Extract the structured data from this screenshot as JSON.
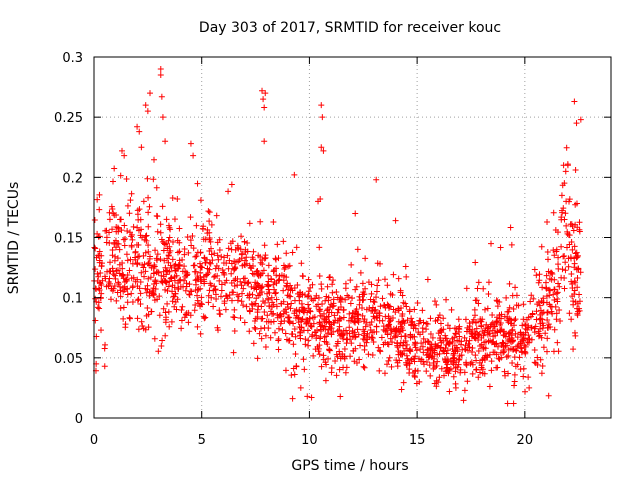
{
  "chart_data": {
    "type": "scatter",
    "title": "Day 303 of 2017, SRMTID for receiver kouc",
    "xlabel": "GPS time / hours",
    "ylabel": "SRMTID / TECUs",
    "xlim": [
      0,
      24
    ],
    "ylim": [
      0,
      0.3
    ],
    "xticks": [
      0,
      5,
      10,
      15,
      20
    ],
    "xtick_labels": [
      "0",
      "5",
      "10",
      "15",
      "20"
    ],
    "yticks": [
      0,
      0.05,
      0.1,
      0.15,
      0.2,
      0.25,
      0.3
    ],
    "ytick_labels": [
      "0",
      "0.05",
      "0.1",
      "0.15",
      "0.2",
      "0.25",
      "0.3"
    ],
    "grid": true,
    "marker": "+",
    "color": "#ff0000",
    "trend": {
      "x": [
        0,
        1,
        2,
        3,
        4,
        5,
        6,
        7,
        8,
        9,
        10,
        11,
        12,
        13,
        14,
        15,
        16,
        17,
        18,
        19,
        20,
        20.5,
        21,
        21.5,
        22,
        22.5
      ],
      "y": [
        0.11,
        0.13,
        0.13,
        0.115,
        0.12,
        0.12,
        0.11,
        0.115,
        0.1,
        0.09,
        0.08,
        0.075,
        0.075,
        0.08,
        0.07,
        0.06,
        0.055,
        0.055,
        0.07,
        0.07,
        0.065,
        0.07,
        0.085,
        0.12,
        0.14,
        0.11
      ],
      "spread": [
        0.028,
        0.03,
        0.032,
        0.03,
        0.026,
        0.025,
        0.025,
        0.025,
        0.025,
        0.027,
        0.025,
        0.022,
        0.022,
        0.025,
        0.02,
        0.018,
        0.017,
        0.017,
        0.02,
        0.02,
        0.022,
        0.025,
        0.03,
        0.035,
        0.04,
        0.03
      ]
    },
    "samples_per_hour": 90,
    "x_end": 22.6,
    "outliers": [
      {
        "x": 3.1,
        "y": 0.29
      },
      {
        "x": 3.1,
        "y": 0.285
      },
      {
        "x": 3.15,
        "y": 0.267
      },
      {
        "x": 2.0,
        "y": 0.242
      },
      {
        "x": 2.1,
        "y": 0.238
      },
      {
        "x": 2.4,
        "y": 0.26
      },
      {
        "x": 2.5,
        "y": 0.255
      },
      {
        "x": 2.6,
        "y": 0.27
      },
      {
        "x": 2.2,
        "y": 0.225
      },
      {
        "x": 3.2,
        "y": 0.25
      },
      {
        "x": 3.3,
        "y": 0.23
      },
      {
        "x": 1.3,
        "y": 0.222
      },
      {
        "x": 1.4,
        "y": 0.218
      },
      {
        "x": 4.5,
        "y": 0.228
      },
      {
        "x": 4.6,
        "y": 0.218
      },
      {
        "x": 7.8,
        "y": 0.272
      },
      {
        "x": 7.85,
        "y": 0.265
      },
      {
        "x": 7.9,
        "y": 0.258
      },
      {
        "x": 7.95,
        "y": 0.27
      },
      {
        "x": 7.9,
        "y": 0.23
      },
      {
        "x": 10.55,
        "y": 0.26
      },
      {
        "x": 10.6,
        "y": 0.25
      },
      {
        "x": 10.55,
        "y": 0.225
      },
      {
        "x": 10.65,
        "y": 0.222
      },
      {
        "x": 9.3,
        "y": 0.202
      },
      {
        "x": 13.1,
        "y": 0.198
      },
      {
        "x": 6.4,
        "y": 0.194
      },
      {
        "x": 10.4,
        "y": 0.18
      },
      {
        "x": 10.5,
        "y": 0.182
      },
      {
        "x": 14.0,
        "y": 0.164
      },
      {
        "x": 22.3,
        "y": 0.263
      },
      {
        "x": 22.4,
        "y": 0.245
      },
      {
        "x": 22.6,
        "y": 0.248
      },
      {
        "x": 21.8,
        "y": 0.21
      },
      {
        "x": 21.9,
        "y": 0.205
      },
      {
        "x": 22.0,
        "y": 0.21
      },
      {
        "x": 9.9,
        "y": 0.018
      },
      {
        "x": 10.1,
        "y": 0.017
      },
      {
        "x": 9.6,
        "y": 0.025
      },
      {
        "x": 16.5,
        "y": 0.022
      },
      {
        "x": 16.8,
        "y": 0.025
      },
      {
        "x": 19.5,
        "y": 0.027
      },
      {
        "x": 20.2,
        "y": 0.025
      },
      {
        "x": 0.5,
        "y": 0.043
      },
      {
        "x": 0.1,
        "y": 0.045
      }
    ]
  }
}
